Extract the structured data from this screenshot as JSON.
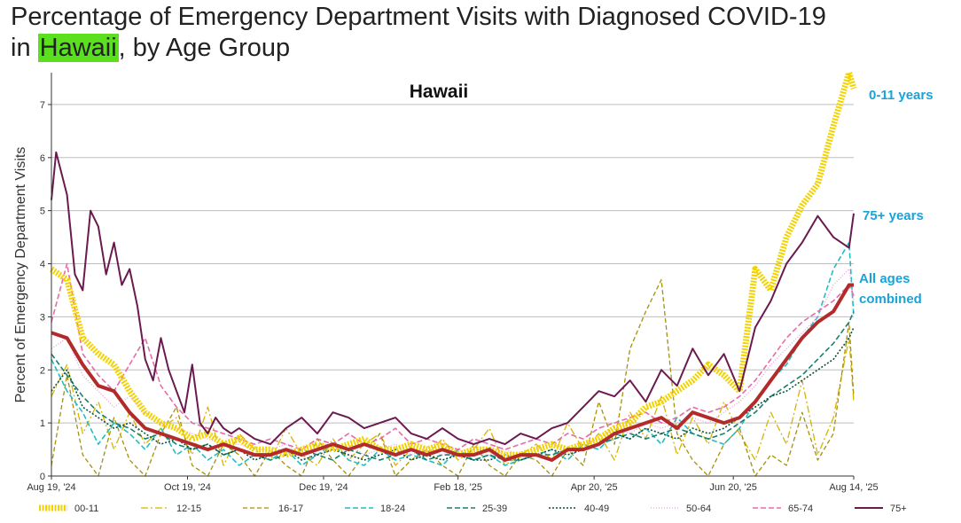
{
  "title": {
    "line1": "Percentage of Emergency Department Visits with Diagnosed COVID-19",
    "line2_prefix": "in ",
    "line2_highlight": "Hawaii",
    "line2_suffix": ", by Age Group",
    "highlight_color": "#5ae01f"
  },
  "chart_data": {
    "type": "line",
    "title": "Hawaii",
    "xlabel": "",
    "ylabel": "Percent of Emergency Department Visits",
    "ylim": [
      0,
      7.6
    ],
    "yticks": [
      0,
      1,
      2,
      3,
      4,
      5,
      6,
      7
    ],
    "x_tick_labels": [
      "Aug 19, '24",
      "Oct 19, '24",
      "Dec 19, '24",
      "Feb 18, '25",
      "Apr 20, '25",
      "Jun 20, '25",
      "Aug 14, '25"
    ],
    "x_tick_weeks": [
      0,
      8.7,
      17.4,
      26,
      34.7,
      43.6,
      51.3
    ],
    "grid": "horizontal",
    "annotations": [
      {
        "text": "0-11 years",
        "series": "00-11",
        "color": "#1aa3d9"
      },
      {
        "text": "75+ years",
        "series": "75+",
        "color": "#1aa3d9"
      },
      {
        "text": "All ages combined",
        "series": "All ages",
        "color": "#1aa3d9"
      }
    ],
    "series": [
      {
        "name": "00-11",
        "color": "#f2d300",
        "width": 7,
        "dash": "dot",
        "weeks": [
          0,
          1,
          2,
          3,
          4,
          5,
          6,
          7,
          8,
          9,
          10,
          11,
          12,
          13,
          14,
          15,
          16,
          17,
          18,
          19,
          20,
          21,
          22,
          23,
          24,
          25,
          26,
          27,
          28,
          29,
          30,
          31,
          32,
          33,
          34,
          35,
          36,
          37,
          38,
          39,
          40,
          41,
          42,
          43,
          44,
          45,
          46,
          47,
          48,
          49,
          50,
          51,
          51.3
        ],
        "values": [
          3.9,
          3.7,
          2.6,
          2.3,
          2.1,
          1.6,
          1.2,
          1.0,
          0.9,
          0.7,
          0.8,
          0.6,
          0.7,
          0.5,
          0.5,
          0.4,
          0.5,
          0.6,
          0.5,
          0.6,
          0.7,
          0.5,
          0.5,
          0.6,
          0.5,
          0.6,
          0.4,
          0.5,
          0.5,
          0.4,
          0.4,
          0.5,
          0.6,
          0.5,
          0.6,
          0.7,
          0.9,
          1.0,
          1.3,
          1.4,
          1.6,
          1.8,
          2.1,
          1.9,
          1.6,
          3.9,
          3.5,
          4.5,
          5.1,
          5.5,
          6.6,
          7.6,
          7.3
        ]
      },
      {
        "name": "12-15",
        "color": "#d6b400",
        "width": 1.3,
        "dash": "8,3,2,3",
        "weeks": [
          0,
          1,
          2,
          3,
          4,
          5,
          6,
          7,
          8,
          9,
          10,
          11,
          12,
          13,
          14,
          15,
          16,
          17,
          18,
          19,
          20,
          21,
          22,
          23,
          24,
          25,
          26,
          27,
          28,
          29,
          30,
          31,
          32,
          33,
          34,
          35,
          36,
          37,
          38,
          39,
          40,
          41,
          42,
          43,
          44,
          45,
          46,
          47,
          48,
          49,
          50,
          51,
          51.3
        ],
        "values": [
          1.5,
          2.1,
          0.8,
          1.4,
          0.5,
          1.2,
          0.6,
          0.9,
          1.1,
          0.4,
          1.3,
          0.2,
          0.8,
          0.5,
          0.3,
          0.9,
          0.4,
          0.2,
          0.7,
          0.3,
          0.6,
          0.8,
          0.2,
          0.5,
          0.4,
          0.7,
          0.3,
          0.5,
          0.9,
          0.2,
          0.4,
          0.6,
          0.3,
          1.0,
          0.5,
          0.8,
          0.3,
          1.2,
          0.7,
          1.5,
          0.4,
          1.1,
          0.6,
          1.4,
          0.8,
          0.3,
          1.2,
          0.6,
          1.8,
          0.4,
          1.1,
          2.6,
          1.4
        ]
      },
      {
        "name": "16-17",
        "color": "#a6900a",
        "width": 1.3,
        "dash": "5,3",
        "weeks": [
          0,
          1,
          2,
          3,
          4,
          5,
          6,
          7,
          8,
          9,
          10,
          11,
          12,
          13,
          14,
          15,
          16,
          17,
          18,
          19,
          20,
          21,
          22,
          23,
          24,
          25,
          26,
          27,
          28,
          29,
          30,
          31,
          32,
          33,
          34,
          35,
          36,
          37,
          38,
          39,
          40,
          41,
          42,
          43,
          44,
          45,
          46,
          47,
          48,
          49,
          50,
          51,
          51.3
        ],
        "values": [
          0.2,
          1.9,
          0.4,
          0.0,
          1.1,
          0.3,
          0.0,
          0.8,
          1.3,
          0.2,
          0.0,
          0.6,
          0.4,
          0.0,
          0.5,
          0.2,
          0.0,
          0.7,
          0.3,
          0.0,
          0.4,
          0.8,
          0.0,
          0.3,
          0.5,
          0.2,
          0.0,
          0.6,
          0.2,
          0.0,
          0.4,
          0.3,
          0.0,
          0.5,
          0.2,
          1.4,
          0.6,
          2.4,
          3.1,
          3.7,
          0.8,
          0.3,
          0.0,
          0.6,
          0.9,
          0.0,
          0.4,
          0.2,
          1.2,
          0.3,
          0.8,
          2.9,
          1.5
        ]
      },
      {
        "name": "18-24",
        "color": "#22bcc4",
        "width": 1.6,
        "dash": "6,3",
        "weeks": [
          0,
          1,
          2,
          3,
          4,
          5,
          6,
          7,
          8,
          9,
          10,
          11,
          12,
          13,
          14,
          15,
          16,
          17,
          18,
          19,
          20,
          21,
          22,
          23,
          24,
          25,
          26,
          27,
          28,
          29,
          30,
          31,
          32,
          33,
          34,
          35,
          36,
          37,
          38,
          39,
          40,
          41,
          42,
          43,
          44,
          45,
          46,
          47,
          48,
          49,
          50,
          51,
          51.3
        ],
        "values": [
          2.2,
          1.6,
          1.2,
          0.6,
          1.0,
          0.8,
          0.5,
          0.9,
          0.4,
          0.6,
          0.3,
          0.5,
          0.2,
          0.4,
          0.3,
          0.5,
          0.2,
          0.4,
          0.6,
          0.3,
          0.2,
          0.5,
          0.3,
          0.4,
          0.3,
          0.2,
          0.5,
          0.3,
          0.4,
          0.2,
          0.3,
          0.4,
          0.5,
          0.3,
          0.6,
          0.5,
          0.8,
          0.7,
          0.9,
          0.6,
          1.1,
          0.8,
          0.7,
          0.6,
          0.9,
          1.4,
          1.8,
          2.1,
          2.6,
          3.0,
          3.9,
          4.4,
          3.0
        ]
      },
      {
        "name": "25-39",
        "color": "#1b7f6e",
        "width": 1.6,
        "dash": "6,3",
        "weeks": [
          0,
          1,
          2,
          3,
          4,
          5,
          6,
          7,
          8,
          9,
          10,
          11,
          12,
          13,
          14,
          15,
          16,
          17,
          18,
          19,
          20,
          21,
          22,
          23,
          24,
          25,
          26,
          27,
          28,
          29,
          30,
          31,
          32,
          33,
          34,
          35,
          36,
          37,
          38,
          39,
          40,
          41,
          42,
          43,
          44,
          45,
          46,
          47,
          48,
          49,
          50,
          51,
          51.3
        ],
        "values": [
          2.3,
          1.9,
          1.5,
          1.2,
          1.0,
          0.9,
          0.7,
          0.8,
          0.6,
          0.5,
          0.6,
          0.4,
          0.5,
          0.4,
          0.3,
          0.4,
          0.5,
          0.4,
          0.3,
          0.5,
          0.4,
          0.3,
          0.4,
          0.5,
          0.3,
          0.4,
          0.4,
          0.3,
          0.4,
          0.3,
          0.3,
          0.4,
          0.4,
          0.5,
          0.5,
          0.6,
          0.7,
          0.8,
          0.7,
          0.8,
          0.9,
          0.8,
          0.7,
          0.8,
          1.0,
          1.2,
          1.5,
          1.7,
          1.9,
          2.2,
          2.5,
          2.9,
          3.1
        ]
      },
      {
        "name": "40-49",
        "color": "#0f4f3c",
        "width": 1.6,
        "dash": "2,2",
        "weeks": [
          0,
          1,
          2,
          3,
          4,
          5,
          6,
          7,
          8,
          9,
          10,
          11,
          12,
          13,
          14,
          15,
          16,
          17,
          18,
          19,
          20,
          21,
          22,
          23,
          24,
          25,
          26,
          27,
          28,
          29,
          30,
          31,
          32,
          33,
          34,
          35,
          36,
          37,
          38,
          39,
          40,
          41,
          42,
          43,
          44,
          45,
          46,
          47,
          48,
          49,
          50,
          51,
          51.3
        ],
        "values": [
          1.6,
          2.0,
          1.3,
          1.1,
          0.9,
          1.0,
          0.8,
          0.6,
          0.7,
          0.5,
          0.6,
          0.4,
          0.5,
          0.3,
          0.4,
          0.5,
          0.3,
          0.4,
          0.5,
          0.4,
          0.3,
          0.4,
          0.5,
          0.3,
          0.4,
          0.3,
          0.4,
          0.3,
          0.3,
          0.4,
          0.3,
          0.4,
          0.5,
          0.4,
          0.5,
          0.6,
          0.8,
          0.7,
          0.9,
          0.8,
          0.7,
          0.9,
          0.8,
          0.9,
          1.1,
          1.3,
          1.5,
          1.6,
          1.8,
          2.0,
          2.2,
          2.6,
          2.8
        ]
      },
      {
        "name": "50-64",
        "color": "#e8a0d8",
        "width": 1.3,
        "dash": "1,2",
        "weeks": [
          0,
          1,
          2,
          3,
          4,
          5,
          6,
          7,
          8,
          9,
          10,
          11,
          12,
          13,
          14,
          15,
          16,
          17,
          18,
          19,
          20,
          21,
          22,
          23,
          24,
          25,
          26,
          27,
          28,
          29,
          30,
          31,
          32,
          33,
          34,
          35,
          36,
          37,
          38,
          39,
          40,
          41,
          42,
          43,
          44,
          45,
          46,
          47,
          48,
          49,
          50,
          51,
          51.3
        ],
        "values": [
          2.4,
          2.6,
          1.9,
          1.6,
          1.3,
          1.5,
          1.2,
          1.0,
          0.9,
          0.8,
          0.7,
          0.6,
          0.6,
          0.5,
          0.5,
          0.6,
          0.4,
          0.5,
          0.5,
          0.6,
          0.4,
          0.5,
          0.6,
          0.4,
          0.5,
          0.4,
          0.5,
          0.4,
          0.4,
          0.5,
          0.4,
          0.5,
          0.6,
          0.5,
          0.6,
          0.7,
          0.9,
          0.8,
          1.0,
          0.9,
          1.0,
          1.1,
          1.0,
          1.2,
          1.4,
          1.7,
          2.1,
          2.4,
          2.7,
          3.0,
          3.6,
          3.9,
          3.3
        ]
      },
      {
        "name": "65-74",
        "color": "#e86aa8",
        "width": 1.6,
        "dash": "6,3",
        "weeks": [
          0,
          1,
          2,
          3,
          4,
          5,
          6,
          7,
          8,
          9,
          10,
          11,
          12,
          13,
          14,
          15,
          16,
          17,
          18,
          19,
          20,
          21,
          22,
          23,
          24,
          25,
          26,
          27,
          28,
          29,
          30,
          31,
          32,
          33,
          34,
          35,
          36,
          37,
          38,
          39,
          40,
          41,
          42,
          43,
          44,
          45,
          46,
          47,
          48,
          49,
          50,
          51,
          51.3
        ],
        "values": [
          2.9,
          4.0,
          2.3,
          1.9,
          1.6,
          2.1,
          2.6,
          1.7,
          1.3,
          1.0,
          0.9,
          0.8,
          0.7,
          0.6,
          0.7,
          0.6,
          0.5,
          0.7,
          0.6,
          0.8,
          0.6,
          0.7,
          0.9,
          0.6,
          0.7,
          0.6,
          0.5,
          0.7,
          0.6,
          0.5,
          0.6,
          0.7,
          0.6,
          0.8,
          0.7,
          0.9,
          1.0,
          1.1,
          1.2,
          1.0,
          1.1,
          1.3,
          1.2,
          1.3,
          1.5,
          1.8,
          2.2,
          2.6,
          2.9,
          3.1,
          3.3,
          3.6,
          3.4
        ]
      },
      {
        "name": "75+",
        "color": "#6b1a4f",
        "width": 2,
        "dash": "",
        "weeks": [
          0,
          0.3,
          1,
          1.5,
          2,
          2.5,
          3,
          3.5,
          4,
          4.5,
          5,
          5.5,
          6,
          6.5,
          7,
          7.5,
          8,
          8.5,
          9,
          9.5,
          10,
          10.5,
          11,
          11.5,
          12,
          13,
          14,
          15,
          16,
          17,
          18,
          19,
          20,
          21,
          22,
          23,
          24,
          25,
          26,
          27,
          28,
          29,
          30,
          31,
          32,
          33,
          34,
          35,
          36,
          37,
          38,
          39,
          40,
          41,
          42,
          43,
          44,
          45,
          46,
          47,
          48,
          49,
          50,
          51,
          51.3
        ],
        "values": [
          5.2,
          6.1,
          5.3,
          3.8,
          3.5,
          5.0,
          4.7,
          3.8,
          4.4,
          3.6,
          3.9,
          3.2,
          2.2,
          1.8,
          2.6,
          2.0,
          1.6,
          1.2,
          2.1,
          1.0,
          0.8,
          1.1,
          0.9,
          0.8,
          0.9,
          0.7,
          0.6,
          0.9,
          1.1,
          0.8,
          1.2,
          1.1,
          0.9,
          1.0,
          1.1,
          0.8,
          0.7,
          0.9,
          0.7,
          0.6,
          0.7,
          0.6,
          0.8,
          0.7,
          0.9,
          1.0,
          1.3,
          1.6,
          1.5,
          1.8,
          1.4,
          2.0,
          1.7,
          2.4,
          1.9,
          2.3,
          1.6,
          2.8,
          3.3,
          4.0,
          4.4,
          4.9,
          4.5,
          4.3,
          4.95
        ]
      },
      {
        "name": "All ages",
        "color": "#b22a2a",
        "width": 4,
        "dash": "",
        "weeks": [
          0,
          1,
          2,
          3,
          4,
          5,
          6,
          7,
          8,
          9,
          10,
          11,
          12,
          13,
          14,
          15,
          16,
          17,
          18,
          19,
          20,
          21,
          22,
          23,
          24,
          25,
          26,
          27,
          28,
          29,
          30,
          31,
          32,
          33,
          34,
          35,
          36,
          37,
          38,
          39,
          40,
          41,
          42,
          43,
          44,
          45,
          46,
          47,
          48,
          49,
          50,
          51,
          51.3
        ],
        "values": [
          2.7,
          2.6,
          2.1,
          1.7,
          1.6,
          1.2,
          0.9,
          0.8,
          0.7,
          0.6,
          0.5,
          0.6,
          0.5,
          0.4,
          0.4,
          0.5,
          0.4,
          0.5,
          0.6,
          0.5,
          0.6,
          0.5,
          0.4,
          0.5,
          0.4,
          0.5,
          0.4,
          0.4,
          0.5,
          0.3,
          0.4,
          0.4,
          0.3,
          0.5,
          0.5,
          0.6,
          0.8,
          0.9,
          1.0,
          1.1,
          0.9,
          1.2,
          1.1,
          1.0,
          1.1,
          1.4,
          1.8,
          2.2,
          2.6,
          2.9,
          3.1,
          3.6,
          3.6
        ]
      }
    ]
  },
  "legend": {
    "items": [
      {
        "label": "00-11",
        "color": "#f2d300",
        "width": 7,
        "dash": "dot"
      },
      {
        "label": "12-15",
        "color": "#d6b400",
        "width": 1.3,
        "dash": "8,3,2,3"
      },
      {
        "label": "16-17",
        "color": "#a6900a",
        "width": 1.3,
        "dash": "5,3"
      },
      {
        "label": "18-24",
        "color": "#22bcc4",
        "width": 1.6,
        "dash": "6,3"
      },
      {
        "label": "25-39",
        "color": "#1b7f6e",
        "width": 1.6,
        "dash": "6,3"
      },
      {
        "label": "40-49",
        "color": "#0f4f3c",
        "width": 1.6,
        "dash": "2,2"
      },
      {
        "label": "50-64",
        "color": "#e8a0d8",
        "width": 1.3,
        "dash": "1,2"
      },
      {
        "label": "65-74",
        "color": "#e86aa8",
        "width": 1.6,
        "dash": "6,3"
      },
      {
        "label": "75+",
        "color": "#6b1a4f",
        "width": 2,
        "dash": ""
      }
    ]
  }
}
